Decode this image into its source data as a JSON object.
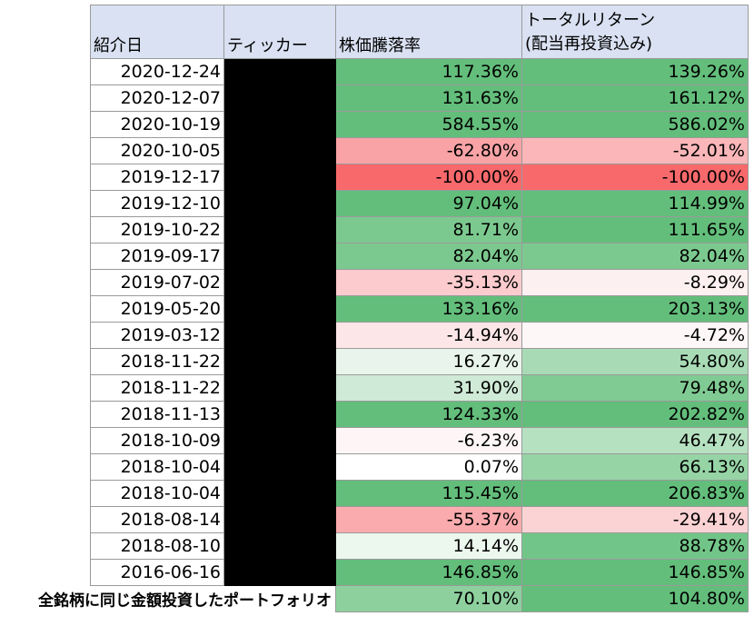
{
  "table": {
    "headers": {
      "date": "紹介日",
      "ticker": "ティッカー",
      "price_change": "株価騰落率",
      "total_return_line1": "トータルリターン",
      "total_return_line2": "(配当再投資込み)"
    },
    "rows": [
      {
        "date": "2020-12-24",
        "price": "117.36%",
        "total": "139.26%",
        "price_color": "#63be7b",
        "total_color": "#63be7b"
      },
      {
        "date": "2020-12-07",
        "price": "131.63%",
        "total": "161.12%",
        "price_color": "#63be7b",
        "total_color": "#63be7b"
      },
      {
        "date": "2020-10-19",
        "price": "584.55%",
        "total": "586.02%",
        "price_color": "#63be7b",
        "total_color": "#63be7b"
      },
      {
        "date": "2020-10-05",
        "price": "-62.80%",
        "total": "-52.01%",
        "price_color": "#f9a3a6",
        "total_color": "#fab6b8"
      },
      {
        "date": "2019-12-17",
        "price": "-100.00%",
        "total": "-100.00%",
        "price_color": "#f8696b",
        "total_color": "#f8696b"
      },
      {
        "date": "2019-12-10",
        "price": "97.04%",
        "total": "114.99%",
        "price_color": "#63be7b",
        "total_color": "#63be7b"
      },
      {
        "date": "2019-10-22",
        "price": "81.71%",
        "total": "111.65%",
        "price_color": "#7cc98f",
        "total_color": "#63be7b"
      },
      {
        "date": "2019-09-17",
        "price": "82.04%",
        "total": "82.04%",
        "price_color": "#7cc98f",
        "total_color": "#7cc98f"
      },
      {
        "date": "2019-07-02",
        "price": "-35.13%",
        "total": "-8.29%",
        "price_color": "#fbcbcd",
        "total_color": "#fdf0f1"
      },
      {
        "date": "2019-05-20",
        "price": "133.16%",
        "total": "203.13%",
        "price_color": "#63be7b",
        "total_color": "#63be7b"
      },
      {
        "date": "2019-03-12",
        "price": "-14.94%",
        "total": "-4.72%",
        "price_color": "#fde6e7",
        "total_color": "#fef7f7"
      },
      {
        "date": "2018-11-22",
        "price": "16.27%",
        "total": "54.80%",
        "price_color": "#e9f5ec",
        "total_color": "#a8dbb5"
      },
      {
        "date": "2018-11-22",
        "price": "31.90%",
        "total": "79.48%",
        "price_color": "#cfeAd6",
        "total_color": "#80cb93"
      },
      {
        "date": "2018-11-13",
        "price": "124.33%",
        "total": "202.82%",
        "price_color": "#63be7b",
        "total_color": "#63be7b"
      },
      {
        "date": "2018-10-09",
        "price": "-6.23%",
        "total": "46.47%",
        "price_color": "#fef6f6",
        "total_color": "#b6e1c1"
      },
      {
        "date": "2018-10-04",
        "price": "0.07%",
        "total": "66.13%",
        "price_color": "#ffffff",
        "total_color": "#96d4a6"
      },
      {
        "date": "2018-10-04",
        "price": "115.45%",
        "total": "206.83%",
        "price_color": "#63be7b",
        "total_color": "#63be7b"
      },
      {
        "date": "2018-08-14",
        "price": "-55.37%",
        "total": "-29.41%",
        "price_color": "#faabad",
        "total_color": "#fcd3d4"
      },
      {
        "date": "2018-08-10",
        "price": "14.14%",
        "total": "88.78%",
        "price_color": "#ecf7ee",
        "total_color": "#72c588"
      },
      {
        "date": "2016-06-16",
        "price": "146.85%",
        "total": "146.85%",
        "price_color": "#63be7b",
        "total_color": "#63be7b"
      }
    ],
    "footer": {
      "label": "全銘柄に同じ金額投資したポートフォリオ",
      "price": "70.10%",
      "total": "104.80%",
      "price_color": "#8dd09e",
      "total_color": "#63be7b"
    }
  }
}
